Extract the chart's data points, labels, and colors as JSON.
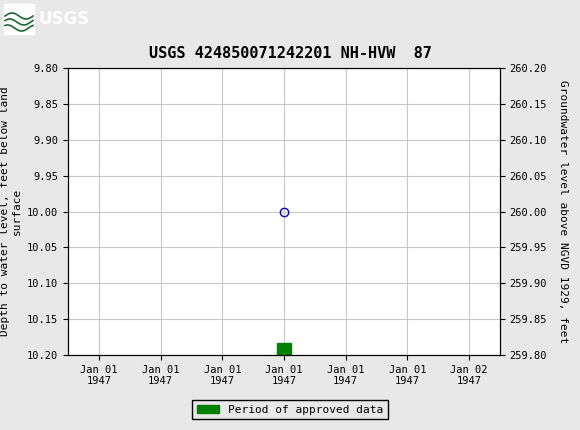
{
  "title": "USGS 424850071242201 NH-HVW  87",
  "title_fontsize": 11,
  "left_ylabel": "Depth to water level, feet below land\nsurface",
  "right_ylabel": "Groundwater level above NGVD 1929, feet",
  "ylabel_fontsize": 8,
  "ylim_left": [
    9.8,
    10.2
  ],
  "ylim_right": [
    259.8,
    260.2
  ],
  "y_ticks_left": [
    9.8,
    9.85,
    9.9,
    9.95,
    10.0,
    10.05,
    10.1,
    10.15,
    10.2
  ],
  "y_ticks_right": [
    259.8,
    259.85,
    259.9,
    259.95,
    260.0,
    260.05,
    260.1,
    260.15,
    260.2
  ],
  "x_tick_labels": [
    "Jan 01\n1947",
    "Jan 01\n1947",
    "Jan 01\n1947",
    "Jan 01\n1947",
    "Jan 01\n1947",
    "Jan 01\n1947",
    "Jan 02\n1947"
  ],
  "x_tick_positions": [
    0,
    1,
    2,
    3,
    4,
    5,
    6
  ],
  "data_point_x": 3,
  "data_point_y": 10.0,
  "data_point_color": "#0000cc",
  "data_point_marker": "o",
  "data_point_fillstyle": "none",
  "data_point_size": 6,
  "green_bar_x": 3.0,
  "green_bar_y": 10.183,
  "green_bar_color": "#008000",
  "green_bar_width": 0.22,
  "green_bar_height": 0.022,
  "legend_label": "Period of approved data",
  "legend_color": "#008000",
  "header_bg_color": "#1a6b30",
  "background_color": "#e8e8e8",
  "plot_bg_color": "#ffffff",
  "grid_color": "#c8c8c8",
  "tick_label_fontsize": 7.5,
  "font_family": "monospace"
}
